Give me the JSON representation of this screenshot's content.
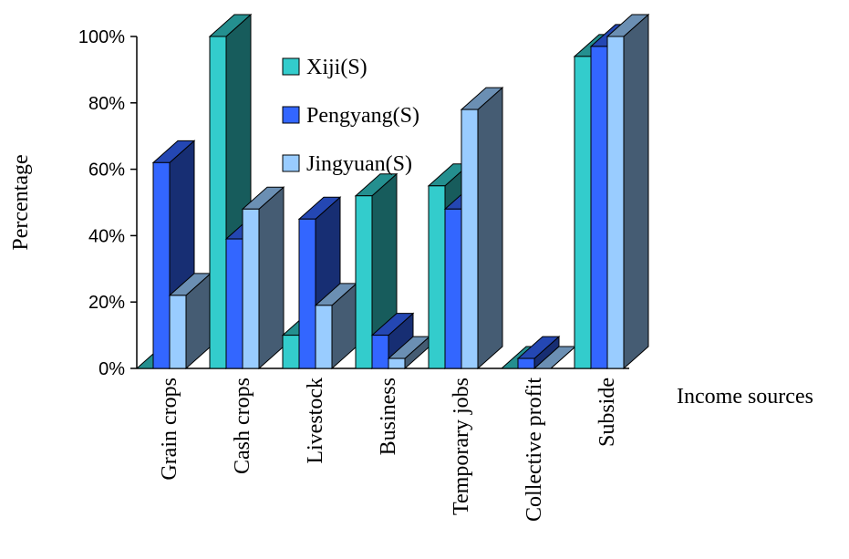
{
  "chart_data": {
    "type": "bar",
    "title": "",
    "xlabel": "Income sources",
    "ylabel": "Percentage",
    "ylim": [
      0,
      100
    ],
    "ytick_labels": [
      "0%",
      "20%",
      "40%",
      "60%",
      "80%",
      "100%"
    ],
    "categories": [
      "Grain crops",
      "Cash crops",
      "Livestock",
      "Business",
      "Temporary jobs",
      "Collective profit",
      "Subside"
    ],
    "series": [
      {
        "name": "Xiji(S)",
        "color": "#33CCCC",
        "values": [
          0,
          100,
          10,
          52,
          55,
          0,
          94
        ]
      },
      {
        "name": "Pengyang(S)",
        "color": "#3366FF",
        "values": [
          62,
          39,
          45,
          10,
          48,
          3,
          97
        ]
      },
      {
        "name": "Jingyuan(S)",
        "color": "#99CCFF",
        "values": [
          22,
          48,
          19,
          3,
          78,
          0,
          100
        ]
      }
    ],
    "grid": false,
    "legend_position": "top-center",
    "style": "3d-bar"
  }
}
